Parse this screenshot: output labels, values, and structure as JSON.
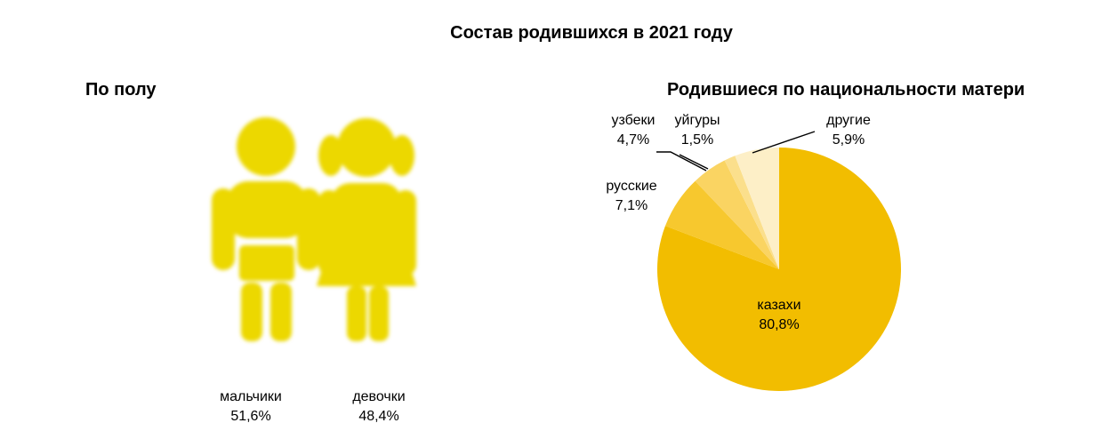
{
  "title": "Состав родившихся в 2021 году",
  "gender": {
    "title": "По полу",
    "boys": {
      "label": "мальчики",
      "value": "51,6%"
    },
    "girls": {
      "label": "девочки",
      "value": "48,4%"
    }
  },
  "nationality": {
    "title": "Родившиеся по национальности матери"
  },
  "colors": {
    "kids": "#ecd800"
  },
  "chart_data": {
    "type": "pie",
    "title": "Родившиеся по национальности матери",
    "slices": [
      {
        "label": "казахи",
        "value": 80.8,
        "text": "80,8%",
        "color": "#f2bd00"
      },
      {
        "label": "русские",
        "value": 7.1,
        "text": "7,1%",
        "color": "#f7c82e"
      },
      {
        "label": "узбеки",
        "value": 4.7,
        "text": "4,7%",
        "color": "#fad462"
      },
      {
        "label": "уйгуры",
        "value": 1.5,
        "text": "1,5%",
        "color": "#fbdf8c"
      },
      {
        "label": "другие",
        "value": 5.9,
        "text": "5,9%",
        "color": "#fdefc7"
      }
    ]
  }
}
